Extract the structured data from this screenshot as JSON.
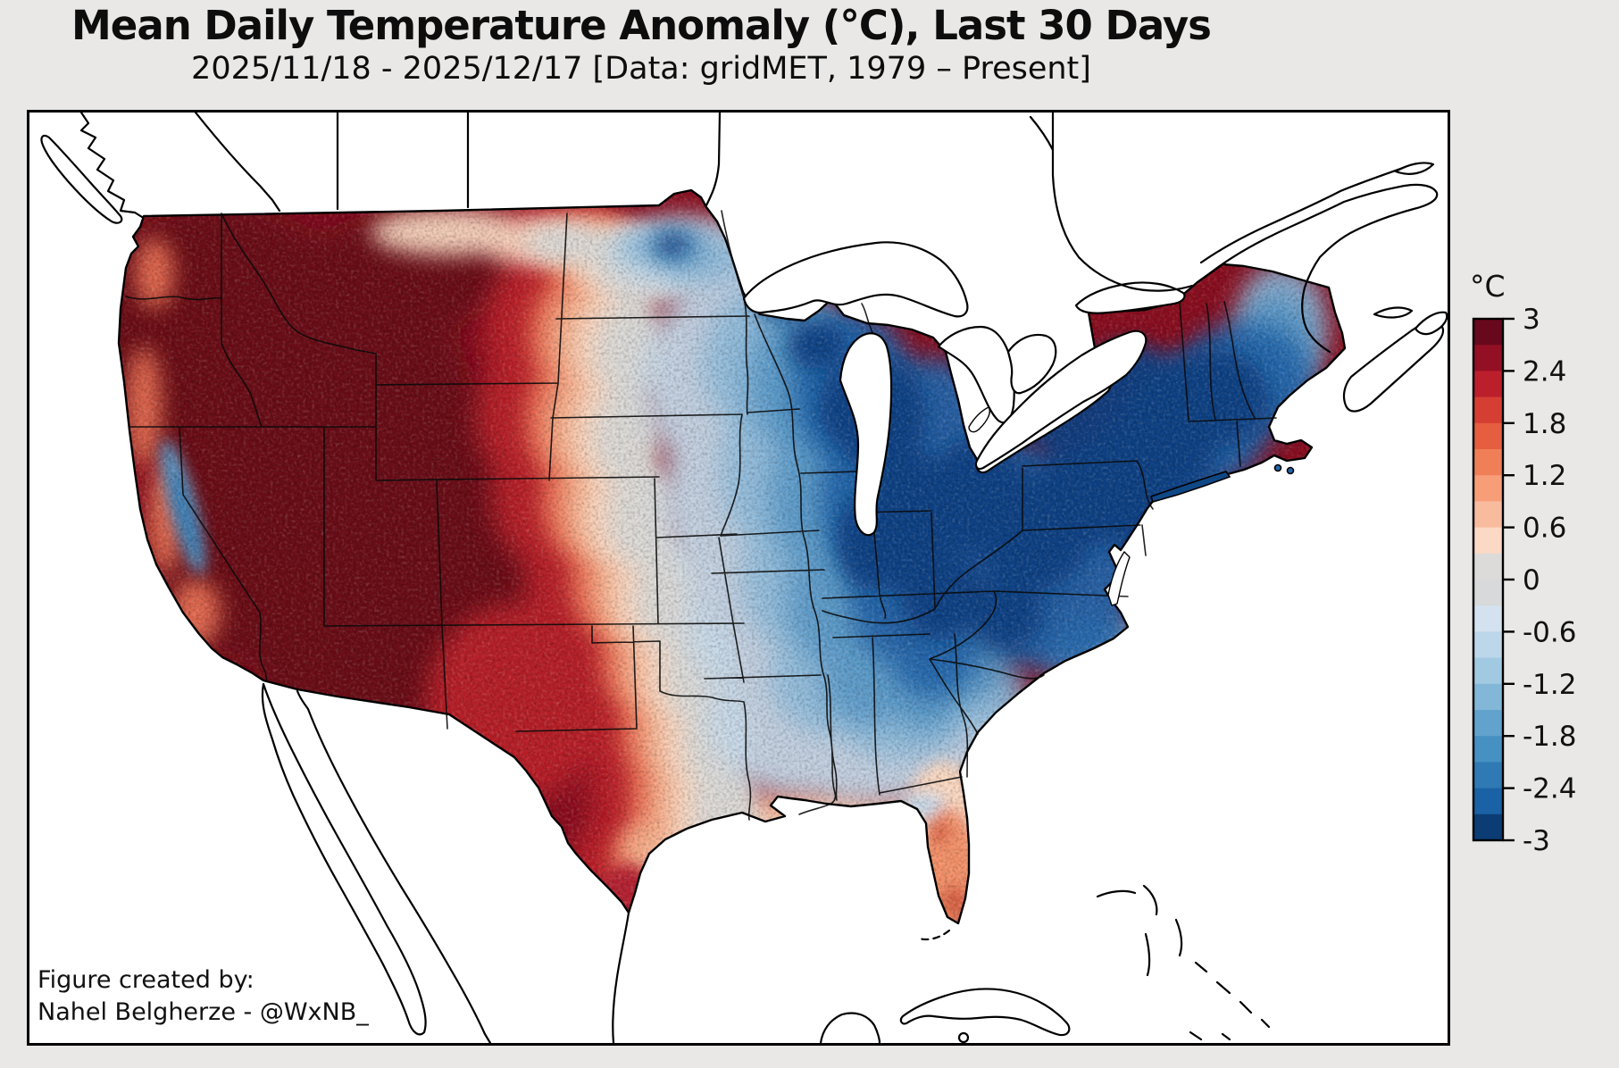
{
  "figure": {
    "title": "Mean Daily Temperature Anomaly (°C), Last 30 Days",
    "subtitle": "2025/11/18 - 2025/12/17 [Data: gridMET, 1979 – Present]",
    "credit_line1": "Figure created by:",
    "credit_line2": "Nahel Belgherze - @WxNB_"
  },
  "colorbar": {
    "unit_label": "°C",
    "tick_labels": [
      "3",
      "2.4",
      "1.8",
      "1.2",
      "0.6",
      "0",
      "-0.6",
      "-1.2",
      "-1.8",
      "-2.4",
      "-3"
    ],
    "min": -3,
    "max": 3,
    "bin_size": 0.3,
    "colors_top_to_bottom": [
      "#67081d",
      "#930f24",
      "#bc1f2c",
      "#d53e33",
      "#e55e40",
      "#f07f58",
      "#f79d78",
      "#f9bb9e",
      "#fcd9c4",
      "#dcdbda",
      "#d7d9da",
      "#d4e2ef",
      "#bcd7ea",
      "#a2c9e2",
      "#83b7d8",
      "#62a3cd",
      "#4690c2",
      "#2f79b4",
      "#1a61a5",
      "#0b3c74"
    ]
  },
  "chart_data": {
    "type": "heatmap",
    "title": "Mean Daily Temperature Anomaly (°C), Last 30 Days",
    "period": "2025/11/18 - 2025/12/17",
    "dataset": "gridMET",
    "climatology_baseline": "1979 – Present",
    "scale": {
      "units": "°C",
      "range": [
        -3,
        3
      ],
      "step": 0.3,
      "palette": "red-gray-blue (warm=red, cool=blue)"
    },
    "regions": [
      {
        "region": "Pacific Northwest, Great Basin, northern Rockies (WA, OR, ID, NV, UT, western MT, WY, interior CA)",
        "anomaly_c": "+2.7 to +3 or greater"
      },
      {
        "region": "Desert Southwest and western Texas (AZ, NM, W TX)",
        "anomaly_c": "+1.8 to +3"
      },
      {
        "region": "California Central Valley",
        "anomaly_c": "-1 to -2 (isolated cool pocket)"
      },
      {
        "region": "High Plains transition band (eastern MT, western Dakotas, NE, KS, OK, central TX)",
        "anomaly_c": "-0.6 to +1.2"
      },
      {
        "region": "Upper Midwest and Great Lakes (MN, WI, MI, IL, IN, OH)",
        "anomaly_c": "-2.4 to -3"
      },
      {
        "region": "Northeast and Mid-Atlantic (NY, PA, New England, VA, MD)",
        "anomaly_c": "-2.4 to -3"
      },
      {
        "region": "Southeast interior (TN, MS, AL, GA, Carolinas)",
        "anomaly_c": "-0.6 to -1.8"
      },
      {
        "region": "Gulf Coast and Florida peninsula",
        "anomaly_c": "+0.3 to +1.5"
      },
      {
        "region": "South Texas",
        "anomaly_c": "+1.8 to +3"
      }
    ]
  },
  "colors": {
    "background": "#e9e8e7",
    "map_background": "#ffffff",
    "outline": "#000000",
    "warm_extreme": "#67081d",
    "cool_extreme": "#0b3c74"
  }
}
